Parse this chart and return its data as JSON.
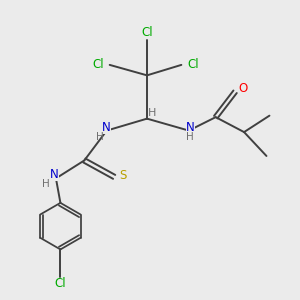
{
  "bg_color": "#ebebeb",
  "atom_colors": {
    "C": "#404040",
    "N": "#0000cc",
    "O": "#ff0000",
    "S": "#b8a000",
    "Cl": "#00aa00",
    "H": "#707070"
  },
  "bond_color": "#404040",
  "bond_lw": 1.4,
  "font_size": 8.5
}
